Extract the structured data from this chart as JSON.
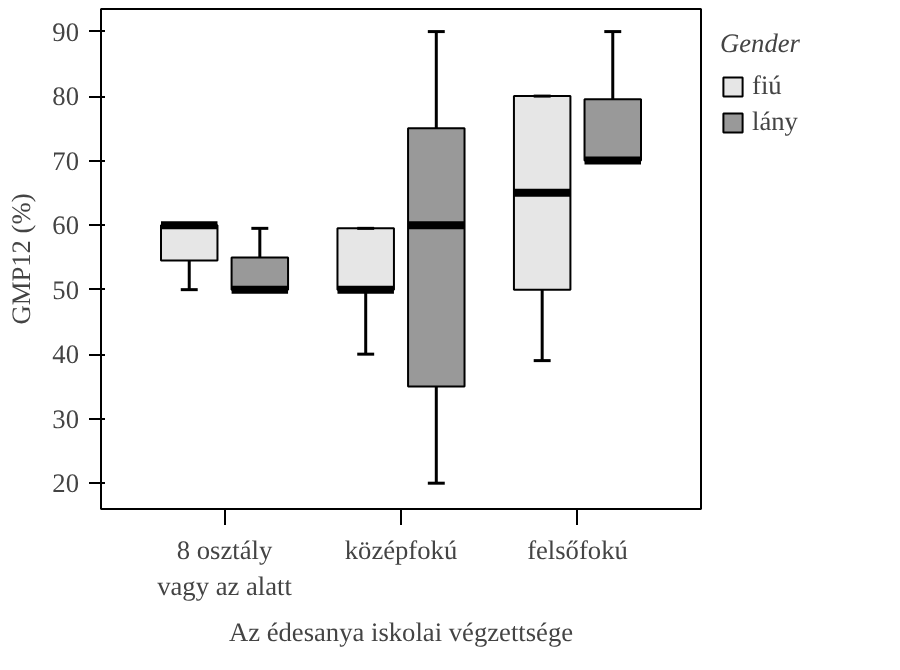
{
  "chart_data": {
    "type": "box",
    "xlabel": "Az édesanya iskolai végzettsége",
    "ylabel": "GMP12 (%)",
    "legend_title": "Gender",
    "legend": "right",
    "grid": false,
    "categories": [
      "8 osztály\nvagy az alatt",
      "középfokú",
      "felsőfokú"
    ],
    "ylim": [
      16,
      93.5
    ],
    "yticks": [
      20,
      30,
      40,
      50,
      60,
      70,
      80,
      90
    ],
    "series": [
      {
        "name": "fiú",
        "color": "#e6e6e6",
        "boxes": [
          {
            "low": 50,
            "q1": 54.5,
            "median": 60,
            "q3": 60,
            "high": 60
          },
          {
            "low": 40,
            "q1": 50,
            "median": 50,
            "q3": 59.5,
            "high": 59.5
          },
          {
            "low": 39,
            "q1": 50,
            "median": 65,
            "q3": 80,
            "high": 80
          }
        ]
      },
      {
        "name": "lány",
        "color": "#999999",
        "boxes": [
          {
            "low": 50,
            "q1": 50,
            "median": 50,
            "q3": 55,
            "high": 59.5
          },
          {
            "low": 20,
            "q1": 35,
            "median": 60,
            "q3": 75,
            "high": 90
          },
          {
            "low": 70,
            "q1": 70,
            "median": 70,
            "q3": 79.5,
            "high": 90
          }
        ]
      }
    ]
  }
}
